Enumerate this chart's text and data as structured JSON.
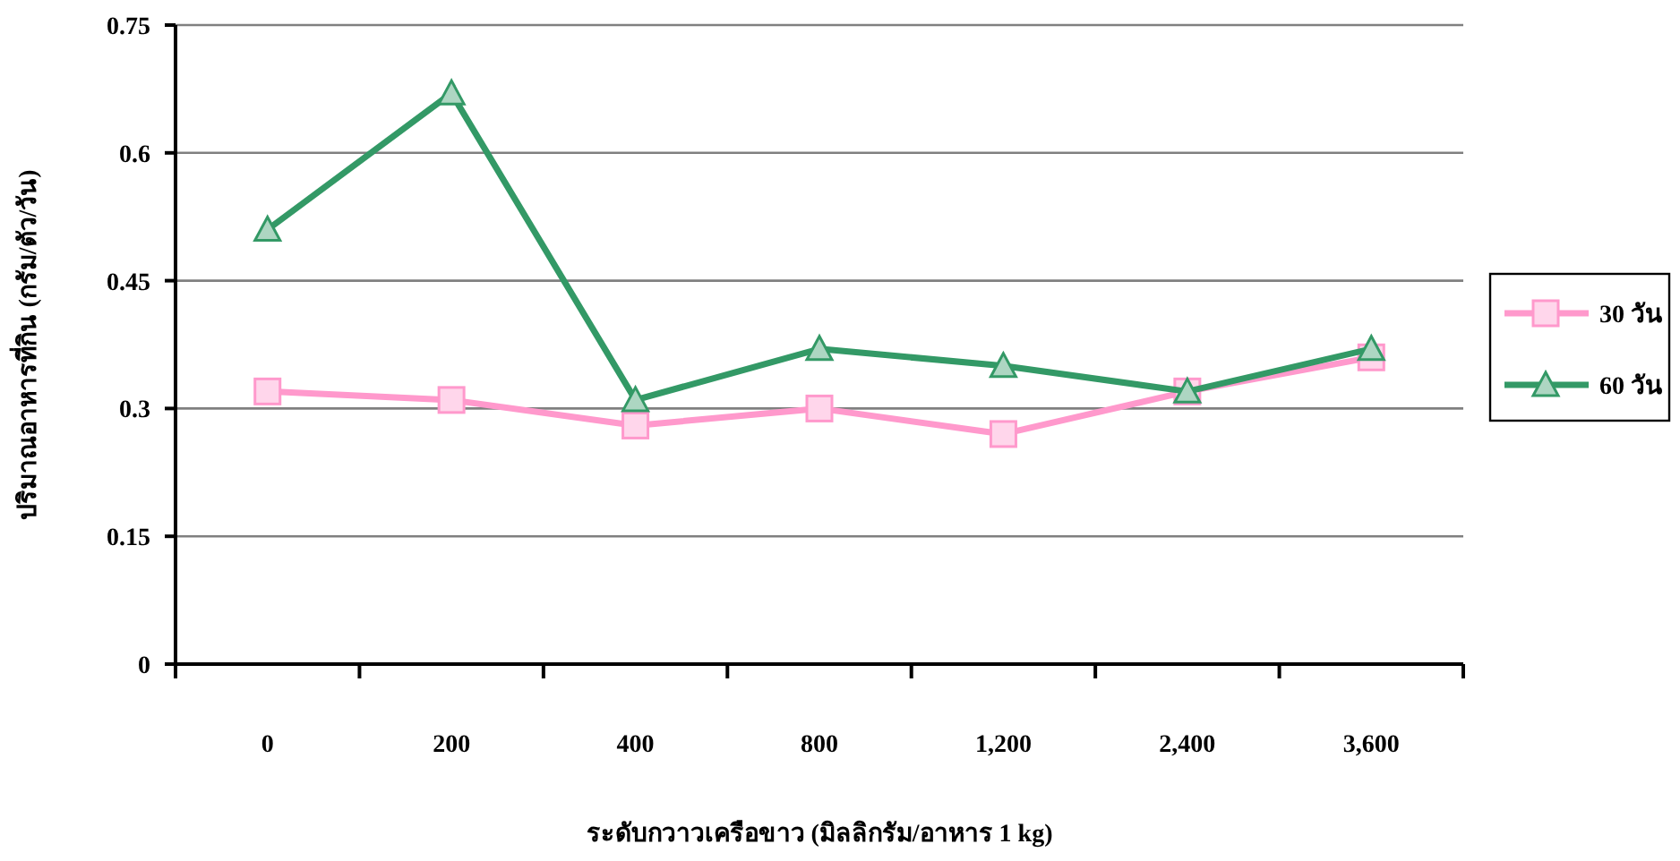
{
  "chart_data": {
    "type": "line",
    "xlabel": "ระดับกวาวเครือขาว (มิลลิกรัม/อาหาร 1 kg)",
    "ylabel": "ปริมาณอาหารที่กิน (กรัม/ตัว/วัน)",
    "categories": [
      "0",
      "200",
      "400",
      "800",
      "1,200",
      "2,400",
      "3,600"
    ],
    "series": [
      {
        "name": "30 วัน",
        "color": "#ff99cc",
        "marker": "square",
        "values": [
          0.32,
          0.31,
          0.28,
          0.3,
          0.27,
          0.32,
          0.36
        ]
      },
      {
        "name": "60 วัน",
        "color": "#339966",
        "marker": "triangle",
        "values": [
          0.51,
          0.67,
          0.31,
          0.37,
          0.35,
          0.32,
          0.37
        ]
      }
    ],
    "ylim": [
      0,
      0.75
    ],
    "yticks": [
      0,
      0.15,
      0.3,
      0.45,
      0.6,
      0.75
    ],
    "grid": "y",
    "legend": "right",
    "line_style": "solid"
  }
}
